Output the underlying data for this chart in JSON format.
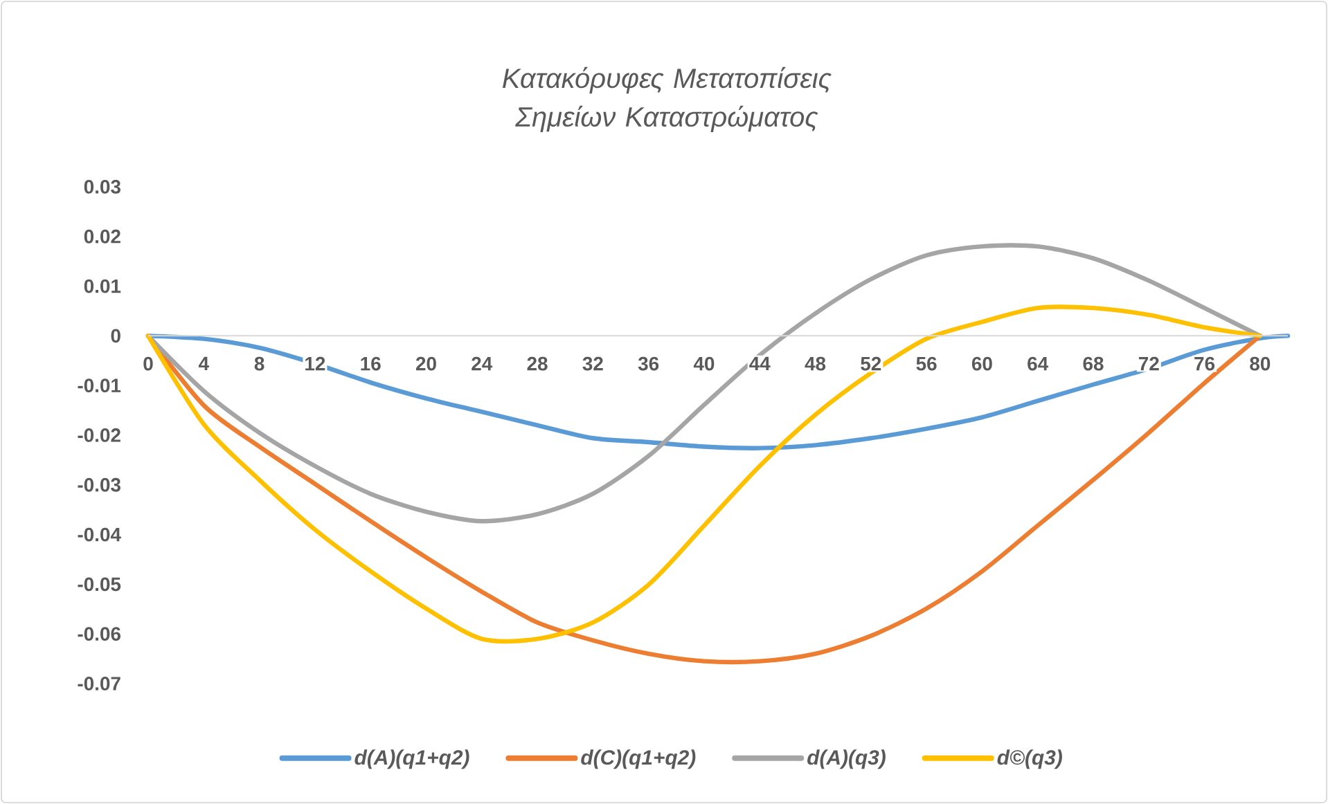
{
  "chart_data": {
    "type": "line",
    "title": "Κατακόρυφες Μετατοπίσεις Σημείων Καταστρώματος",
    "x": [
      0,
      4,
      8,
      12,
      16,
      20,
      24,
      28,
      32,
      36,
      40,
      44,
      48,
      52,
      56,
      60,
      64,
      68,
      72,
      76,
      80
    ],
    "xlim": [
      0,
      82
    ],
    "xticks": [
      0,
      4,
      8,
      12,
      16,
      20,
      24,
      28,
      32,
      36,
      40,
      44,
      48,
      52,
      56,
      60,
      64,
      68,
      72,
      76,
      80
    ],
    "ylim": [
      -0.07,
      0.03
    ],
    "yticks": [
      -0.07,
      -0.06,
      -0.05,
      -0.04,
      -0.03,
      -0.02,
      -0.01,
      0,
      0.01,
      0.02,
      0.03
    ],
    "marker": "none",
    "line_style": "solid",
    "legend": "bottom",
    "series": [
      {
        "name": "d(A)(q1+q2)",
        "color": "#5b9bd5",
        "x": [
          0,
          4,
          8,
          12,
          16,
          20,
          24,
          28,
          32,
          36,
          40,
          44,
          48,
          52,
          56,
          60,
          64,
          68,
          72,
          76,
          80,
          82
        ],
        "values": [
          0,
          -0.0006,
          -0.0024,
          -0.0056,
          -0.0094,
          -0.0126,
          -0.0153,
          -0.018,
          -0.0206,
          -0.0214,
          -0.0223,
          -0.0226,
          -0.022,
          -0.0206,
          -0.0187,
          -0.0164,
          -0.0131,
          -0.0098,
          -0.0066,
          -0.0028,
          -0.0005,
          0
        ]
      },
      {
        "name": "d(C)(q1+q2)",
        "color": "#ed7d31",
        "values": [
          0,
          -0.014,
          -0.0223,
          -0.0298,
          -0.0373,
          -0.0446,
          -0.0515,
          -0.0577,
          -0.0613,
          -0.064,
          -0.0655,
          -0.0655,
          -0.064,
          -0.0604,
          -0.0549,
          -0.0474,
          -0.0382,
          -0.029,
          -0.0195,
          -0.0095,
          0
        ]
      },
      {
        "name": "d(A)(q3)",
        "color": "#a5a5a5",
        "values": [
          0,
          -0.0111,
          -0.0195,
          -0.0262,
          -0.0318,
          -0.0354,
          -0.0373,
          -0.0359,
          -0.0318,
          -0.0242,
          -0.0139,
          -0.0039,
          0.0045,
          0.0114,
          0.0162,
          0.018,
          0.018,
          0.0156,
          0.0111,
          0.0056,
          0
        ]
      },
      {
        "name": "d©(q3)",
        "color": "#ffc000",
        "values": [
          0,
          -0.0178,
          -0.029,
          -0.039,
          -0.0474,
          -0.0549,
          -0.061,
          -0.061,
          -0.0577,
          -0.0501,
          -0.0382,
          -0.0262,
          -0.0159,
          -0.0075,
          -0.0006,
          0.0028,
          0.0056,
          0.0056,
          0.0042,
          0.0017,
          0
        ]
      }
    ]
  }
}
